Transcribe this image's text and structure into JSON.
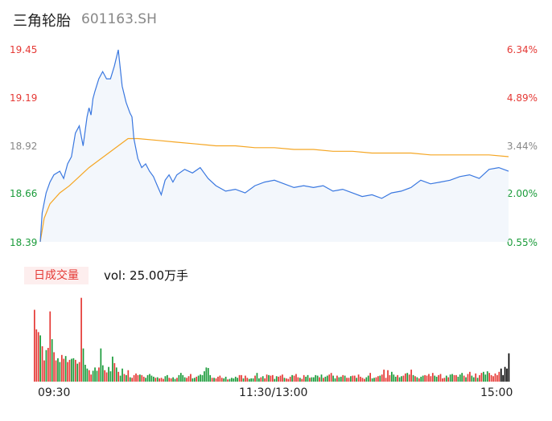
{
  "header": {
    "title": "三角轮胎",
    "code": "601163.SH"
  },
  "price_axis": {
    "left_labels": [
      "19.45",
      "19.19",
      "18.92",
      "18.66",
      "18.39"
    ],
    "right_labels": [
      "6.34%",
      "4.89%",
      "3.44%",
      "2.00%",
      "0.55%"
    ],
    "up_color": "#e53935",
    "down_color": "#1a9b3a",
    "neutral_color": "#888888"
  },
  "volume_panel": {
    "badge": "日成交量",
    "vol_text": "vol: 25.00万手"
  },
  "time_labels": [
    "09:30",
    "11:30/13:00",
    "15:00"
  ],
  "chart_data": [
    {
      "type": "line",
      "title": "",
      "series": [
        {
          "name": "",
          "color": "#3a78e0",
          "x": [
            0,
            1,
            3,
            5,
            7,
            10,
            12,
            14,
            16,
            18,
            20,
            22,
            24,
            25,
            26,
            27,
            28,
            30,
            32,
            33,
            34,
            36,
            38,
            40,
            42,
            44,
            46,
            47,
            48,
            50,
            52,
            54,
            56,
            58,
            60,
            62,
            64,
            66,
            68,
            70,
            74,
            78,
            82,
            86,
            90,
            95,
            100,
            105,
            110,
            115,
            120,
            125,
            130,
            135,
            140,
            145,
            150,
            155,
            160,
            165,
            170,
            175,
            180,
            185,
            190,
            195,
            200,
            205,
            210,
            215,
            220,
            225,
            230,
            235,
            240
          ],
          "y": [
            18.39,
            18.55,
            18.66,
            18.72,
            18.76,
            18.78,
            18.74,
            18.82,
            18.86,
            18.99,
            19.03,
            18.92,
            19.08,
            19.13,
            19.09,
            19.18,
            19.22,
            19.29,
            19.33,
            19.31,
            19.29,
            19.29,
            19.36,
            19.45,
            19.25,
            19.16,
            19.1,
            19.08,
            18.96,
            18.85,
            18.8,
            18.82,
            18.78,
            18.75,
            18.7,
            18.65,
            18.73,
            18.76,
            18.72,
            18.76,
            18.79,
            18.77,
            18.8,
            18.74,
            18.7,
            18.67,
            18.68,
            18.66,
            18.7,
            18.72,
            18.73,
            18.71,
            18.69,
            18.7,
            18.69,
            18.7,
            18.67,
            18.68,
            18.66,
            18.64,
            18.65,
            18.63,
            18.66,
            18.67,
            18.69,
            18.73,
            18.71,
            18.72,
            18.73,
            18.75,
            18.76,
            18.74,
            18.79,
            18.8,
            18.78
          ]
        },
        {
          "name": "",
          "color": "#f5a623",
          "x": [
            0,
            2,
            5,
            10,
            15,
            20,
            25,
            30,
            35,
            40,
            45,
            50,
            60,
            70,
            80,
            90,
            100,
            110,
            120,
            130,
            140,
            150,
            160,
            170,
            180,
            190,
            200,
            210,
            220,
            230,
            240
          ],
          "y": [
            18.39,
            18.52,
            18.6,
            18.66,
            18.7,
            18.75,
            18.8,
            18.84,
            18.88,
            18.92,
            18.96,
            18.96,
            18.95,
            18.94,
            18.93,
            18.92,
            18.92,
            18.91,
            18.91,
            18.9,
            18.9,
            18.89,
            18.89,
            18.88,
            18.88,
            18.88,
            18.87,
            18.87,
            18.87,
            18.87,
            18.86
          ]
        }
      ],
      "xlim": [
        0,
        240
      ],
      "ylim": [
        18.39,
        19.45
      ],
      "grid": false
    },
    {
      "type": "bar",
      "title": "",
      "values": [
        1.32,
        0.96,
        0.91,
        0.85,
        0.65,
        0.39,
        0.58,
        0.62,
        1.29,
        0.78,
        0.54,
        0.39,
        0.43,
        0.36,
        0.49,
        0.42,
        0.47,
        0.36,
        0.4,
        0.42,
        0.43,
        0.4,
        0.33,
        0.36,
        1.54,
        0.61,
        0.31,
        0.24,
        0.21,
        0.13,
        0.2,
        0.26,
        0.2,
        0.26,
        0.61,
        0.3,
        0.21,
        0.17,
        0.27,
        0.19,
        0.46,
        0.34,
        0.26,
        0.18,
        0.11,
        0.24,
        0.14,
        0.12,
        0.21,
        0.08,
        0.07,
        0.12,
        0.15,
        0.12,
        0.13,
        0.12,
        0.09,
        0.07,
        0.12,
        0.14,
        0.11,
        0.09,
        0.07,
        0.08,
        0.06,
        0.07,
        0.05,
        0.1,
        0.12,
        0.07,
        0.06,
        0.08,
        0.05,
        0.07,
        0.12,
        0.16,
        0.12,
        0.08,
        0.07,
        0.1,
        0.14,
        0.06,
        0.07,
        0.09,
        0.11,
        0.13,
        0.12,
        0.19,
        0.26,
        0.25,
        0.12,
        0.07,
        0.07,
        0.06,
        0.09,
        0.11,
        0.07,
        0.06,
        0.09,
        0.04,
        0.05,
        0.07,
        0.06,
        0.09,
        0.07,
        0.12,
        0.12,
        0.06,
        0.11,
        0.07,
        0.05,
        0.06,
        0.06,
        0.11,
        0.16,
        0.06,
        0.08,
        0.1,
        0.06,
        0.13,
        0.12,
        0.11,
        0.12,
        0.05,
        0.1,
        0.09,
        0.11,
        0.13,
        0.07,
        0.06,
        0.05,
        0.09,
        0.12,
        0.11,
        0.14,
        0.08,
        0.07,
        0.05,
        0.12,
        0.09,
        0.12,
        0.07,
        0.08,
        0.08,
        0.12,
        0.11,
        0.08,
        0.13,
        0.07,
        0.09,
        0.11,
        0.13,
        0.16,
        0.11,
        0.06,
        0.11,
        0.08,
        0.09,
        0.12,
        0.11,
        0.07,
        0.07,
        0.1,
        0.11,
        0.11,
        0.07,
        0.13,
        0.09,
        0.07,
        0.05,
        0.08,
        0.11,
        0.16,
        0.06,
        0.07,
        0.08,
        0.1,
        0.11,
        0.13,
        0.22,
        0.07,
        0.21,
        0.12,
        0.18,
        0.13,
        0.09,
        0.12,
        0.08,
        0.1,
        0.11,
        0.15,
        0.16,
        0.13,
        0.22,
        0.12,
        0.1,
        0.08,
        0.06,
        0.09,
        0.11,
        0.12,
        0.11,
        0.14,
        0.1,
        0.16,
        0.11,
        0.09,
        0.12,
        0.14,
        0.06,
        0.07,
        0.11,
        0.08,
        0.13,
        0.14,
        0.12,
        0.12,
        0.09,
        0.13,
        0.16,
        0.11,
        0.08,
        0.14,
        0.18,
        0.11,
        0.08,
        0.15,
        0.07,
        0.12,
        0.16,
        0.18,
        0.13,
        0.19,
        0.16,
        0.12,
        0.1,
        0.15,
        0.12,
        0.18,
        0.24,
        0.12,
        0.27,
        0.24,
        0.52
      ],
      "colors": [
        "#e53935",
        "#e53935",
        "#e53935",
        "#1a9b3a",
        "#e53935",
        "#e53935",
        "#1a9b3a",
        "#e53935",
        "#e53935",
        "#1a9b3a",
        "#e53935",
        "#e53935",
        "#1a9b3a",
        "#1a9b3a",
        "#e53935",
        "#e53935",
        "#1a9b3a",
        "#e53935",
        "#e53935",
        "#1a9b3a",
        "#1a9b3a",
        "#e53935",
        "#1a9b3a",
        "#e53935",
        "#e53935",
        "#1a9b3a",
        "#1a9b3a",
        "#1a9b3a",
        "#e53935",
        "#e53935",
        "#1a9b3a",
        "#1a9b3a",
        "#1a9b3a",
        "#e53935",
        "#1a9b3a",
        "#1a9b3a",
        "#e53935",
        "#e53935",
        "#1a9b3a",
        "#1a9b3a",
        "#1a9b3a",
        "#e53935",
        "#1a9b3a",
        "#e53935",
        "#1a9b3a",
        "#1a9b3a",
        "#e53935",
        "#1a9b3a",
        "#e53935",
        "#1a9b3a",
        "#e53935",
        "#e53935",
        "#e53935",
        "#e53935",
        "#1a9b3a",
        "#e53935",
        "#e53935",
        "#1a9b3a",
        "#1a9b3a",
        "#1a9b3a",
        "#1a9b3a",
        "#1a9b3a",
        "#e53935",
        "#1a9b3a",
        "#e53935",
        "#e53935",
        "#e53935",
        "#1a9b3a",
        "#1a9b3a",
        "#e53935",
        "#e53935",
        "#1a9b3a",
        "#1a9b3a",
        "#e53935",
        "#1a9b3a",
        "#1a9b3a",
        "#1a9b3a",
        "#1a9b3a",
        "#e53935",
        "#e53935",
        "#e53935",
        "#1a9b3a",
        "#1a9b3a",
        "#e53935",
        "#1a9b3a",
        "#1a9b3a",
        "#1a9b3a",
        "#1a9b3a",
        "#1a9b3a",
        "#1a9b3a",
        "#1a9b3a",
        "#e53935",
        "#1a9b3a",
        "#e53935",
        "#e53935",
        "#e53935",
        "#e53935",
        "#1a9b3a",
        "#1a9b3a",
        "#e53935",
        "#1a9b3a",
        "#1a9b3a",
        "#1a9b3a",
        "#1a9b3a",
        "#1a9b3a",
        "#e53935",
        "#e53935",
        "#1a9b3a",
        "#e53935",
        "#e53935",
        "#1a9b3a",
        "#1a9b3a",
        "#1a9b3a",
        "#e53935",
        "#1a9b3a",
        "#1a9b3a",
        "#e53935",
        "#1a9b3a",
        "#e53935",
        "#e53935",
        "#1a9b3a",
        "#e53935",
        "#e53935",
        "#1a9b3a",
        "#1a9b3a",
        "#e53935",
        "#e53935",
        "#e53935",
        "#1a9b3a",
        "#e53935",
        "#e53935",
        "#e53935",
        "#1a9b3a",
        "#e53935",
        "#e53935",
        "#e53935",
        "#1a9b3a",
        "#e53935",
        "#e53935",
        "#1a9b3a",
        "#1a9b3a",
        "#e53935",
        "#1a9b3a",
        "#1a9b3a",
        "#1a9b3a",
        "#1a9b3a",
        "#e53935",
        "#1a9b3a",
        "#e53935",
        "#1a9b3a",
        "#1a9b3a",
        "#e53935",
        "#e53935",
        "#1a9b3a",
        "#1a9b3a",
        "#e53935",
        "#1a9b3a",
        "#1a9b3a",
        "#e53935",
        "#1a9b3a",
        "#e53935",
        "#e53935",
        "#1a9b3a",
        "#e53935",
        "#e53935",
        "#1a9b3a",
        "#e53935",
        "#e53935",
        "#e53935",
        "#e53935",
        "#1a9b3a",
        "#1a9b3a",
        "#e53935",
        "#1a9b3a",
        "#1a9b3a",
        "#e53935",
        "#e53935",
        "#1a9b3a",
        "#e53935",
        "#e53935",
        "#e53935",
        "#e53935",
        "#e53935",
        "#1a9b3a",
        "#1a9b3a",
        "#1a9b3a",
        "#e53935",
        "#1a9b3a",
        "#1a9b3a",
        "#e53935",
        "#e53935",
        "#1a9b3a",
        "#e53935",
        "#e53935",
        "#1a9b3a",
        "#e53935",
        "#1a9b3a",
        "#e53935",
        "#1a9b3a",
        "#1a9b3a",
        "#e53935",
        "#e53935",
        "#e53935",
        "#e53935",
        "#e53935",
        "#1a9b3a",
        "#1a9b3a",
        "#e53935",
        "#e53935",
        "#e53935",
        "#e53935",
        "#1a9b3a",
        "#e53935",
        "#1a9b3a",
        "#1a9b3a",
        "#e53935",
        "#e53935",
        "#1a9b3a",
        "#1a9b3a",
        "#1a9b3a",
        "#e53935",
        "#1a9b3a",
        "#e53935",
        "#e53935",
        "#1a9b3a",
        "#1a9b3a",
        "#e53935",
        "#1a9b3a",
        "#e53935",
        "#e53935",
        "#1a9b3a",
        "#1a9b3a",
        "#1a9b3a",
        "#e53935",
        "#e53935",
        "#e53935",
        "#e53935",
        "#e53935",
        "#e53935"
      ],
      "ylim": [
        0,
        1.55
      ],
      "grid": false
    }
  ]
}
